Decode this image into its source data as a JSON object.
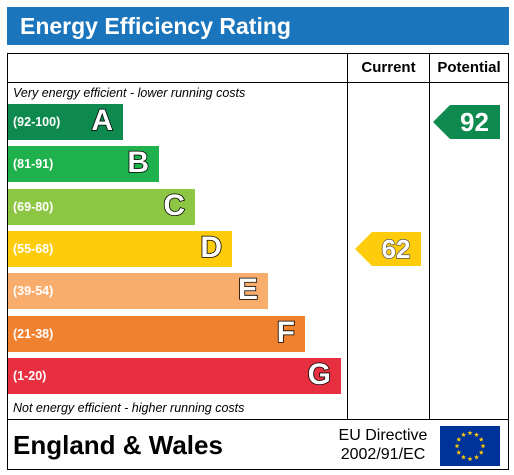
{
  "header": {
    "title": "Energy Efficiency Rating"
  },
  "columns": {
    "current": "Current",
    "potential": "Potential"
  },
  "notes": {
    "top": "Very energy efficient - lower running costs",
    "bottom": "Not energy efficient - higher running costs"
  },
  "chart_data": {
    "type": "bar",
    "title": "Energy Efficiency Rating",
    "bands": [
      {
        "letter": "A",
        "range": "(92-100)",
        "color": "#0e8a4e"
      },
      {
        "letter": "B",
        "range": "(81-91)",
        "color": "#1fb14b"
      },
      {
        "letter": "C",
        "range": "(69-80)",
        "color": "#8dc642"
      },
      {
        "letter": "D",
        "range": "(55-68)",
        "color": "#fecc0a"
      },
      {
        "letter": "E",
        "range": "(39-54)",
        "color": "#f8ad6c"
      },
      {
        "letter": "F",
        "range": "(21-38)",
        "color": "#f0812f"
      },
      {
        "letter": "G",
        "range": "(1-20)",
        "color": "#e72f3f"
      }
    ],
    "current": {
      "value": 62,
      "band": "D",
      "color": "#fecc0a"
    },
    "potential": {
      "value": 92,
      "band": "A",
      "color": "#0e8a4e"
    }
  },
  "footer": {
    "region": "England & Wales",
    "directive_line1": "EU Directive",
    "directive_line2": "2002/91/EC",
    "flag_icon": "eu-flag-icon",
    "flag_color": "#003399",
    "star_color": "#ffcc00"
  }
}
